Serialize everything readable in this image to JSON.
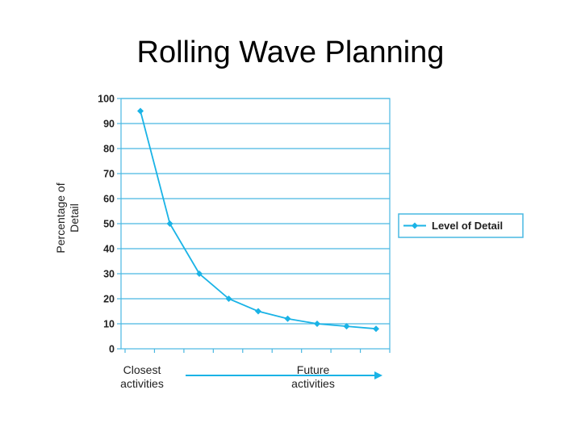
{
  "slide": {
    "title": "Rolling Wave Planning"
  },
  "colors": {
    "line": "#1ab3e6",
    "grid": "#49b8e2",
    "text": "#1f1f1f",
    "background": "#ffffff"
  },
  "chart_data": {
    "type": "line",
    "title": "",
    "ylabel": "Percentage of Detail",
    "xlabel_start": "Closest activities",
    "xlabel_end": "Future activities",
    "ylim": [
      0,
      100
    ],
    "yticks": [
      0,
      10,
      20,
      30,
      40,
      50,
      60,
      70,
      80,
      90,
      100
    ],
    "x": [
      1,
      2,
      3,
      4,
      5,
      6,
      7,
      8,
      9
    ],
    "series": [
      {
        "name": "Level of Detail",
        "values": [
          95,
          50,
          30,
          20,
          15,
          12,
          10,
          9,
          8
        ]
      }
    ],
    "grid": "horizontal",
    "legend": "right"
  }
}
